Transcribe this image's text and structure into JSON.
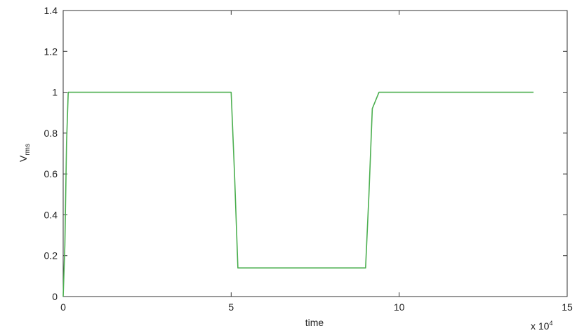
{
  "chart_data": {
    "type": "line",
    "xlabel": "time",
    "ylabel": "V",
    "ylabel_subscript": "rms",
    "x_multiplier": "x 10",
    "x_multiplier_exponent": "4",
    "xlim": [
      0,
      150000
    ],
    "ylim": [
      0,
      1.4
    ],
    "xticks": [
      0,
      50000,
      100000,
      150000
    ],
    "xtick_labels": [
      "0",
      "5",
      "10",
      "15"
    ],
    "yticks": [
      0,
      0.2,
      0.4,
      0.6,
      0.8,
      1.0,
      1.2,
      1.4
    ],
    "ytick_labels": [
      "0",
      "0.2",
      "0.4",
      "0.6",
      "0.8",
      "1",
      "1.2",
      "1.4"
    ],
    "grid": false,
    "series": [
      {
        "color": "#4caf50",
        "x": [
          0,
          500,
          1000,
          1500,
          2000,
          50000,
          51000,
          52000,
          90000,
          91000,
          92000,
          94000,
          100000,
          140000
        ],
        "y": [
          0.0,
          0.25,
          0.75,
          1.0,
          1.0,
          1.0,
          0.6,
          0.14,
          0.14,
          0.5,
          0.92,
          1.0,
          1.0,
          1.0
        ]
      }
    ]
  }
}
